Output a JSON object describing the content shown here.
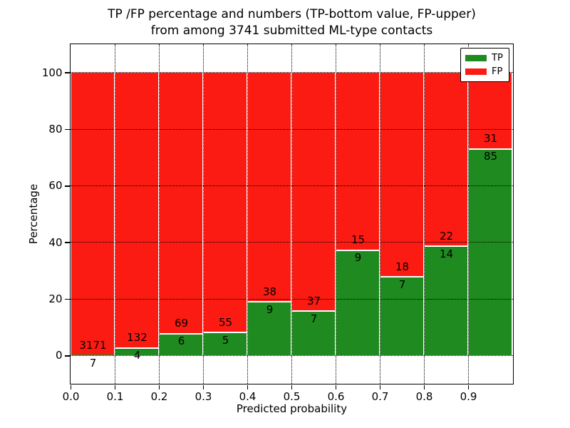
{
  "title": {
    "line1": "TP /FP percentage and numbers (TP-bottom value, FP-upper)",
    "line2": "from among 3741 submitted ML-type contacts"
  },
  "axes": {
    "xlabel": "Predicted probability",
    "ylabel": "Percentage"
  },
  "chart_data": {
    "type": "bar",
    "stacked": true,
    "title": "TP /FP percentage and numbers (TP-bottom value, FP-upper) from among 3741 submitted ML-type contacts",
    "xlabel": "Predicted probability",
    "ylabel": "Percentage",
    "total_contacts": 3741,
    "bins": [
      "0.0-0.1",
      "0.1-0.2",
      "0.2-0.3",
      "0.3-0.4",
      "0.4-0.5",
      "0.5-0.6",
      "0.6-0.7",
      "0.7-0.8",
      "0.8-0.9",
      "0.9-1.0"
    ],
    "series": [
      {
        "name": "TP",
        "color": "#1f8a1f",
        "counts": [
          7,
          4,
          6,
          5,
          9,
          7,
          9,
          7,
          14,
          85
        ]
      },
      {
        "name": "FP",
        "color": "#fb1b12",
        "counts": [
          3171,
          132,
          69,
          55,
          38,
          37,
          15,
          18,
          22,
          31
        ]
      }
    ],
    "tp_percent_of_bin": [
      0.22,
      2.94,
      8.0,
      8.33,
      19.15,
      15.91,
      37.5,
      28.0,
      38.89,
      73.28
    ],
    "x_ticks": [
      "0.0",
      "0.1",
      "0.2",
      "0.3",
      "0.4",
      "0.5",
      "0.6",
      "0.7",
      "0.8",
      "0.9"
    ],
    "y_ticks": [
      "0",
      "20",
      "40",
      "60",
      "80",
      "100"
    ],
    "xlim": [
      0,
      1
    ],
    "ylim": [
      -10,
      110
    ],
    "grid": true,
    "grid_style": "dotted",
    "legend_position": "upper right",
    "bar_edge_color": "#ffffff",
    "text_color": "#000000"
  }
}
